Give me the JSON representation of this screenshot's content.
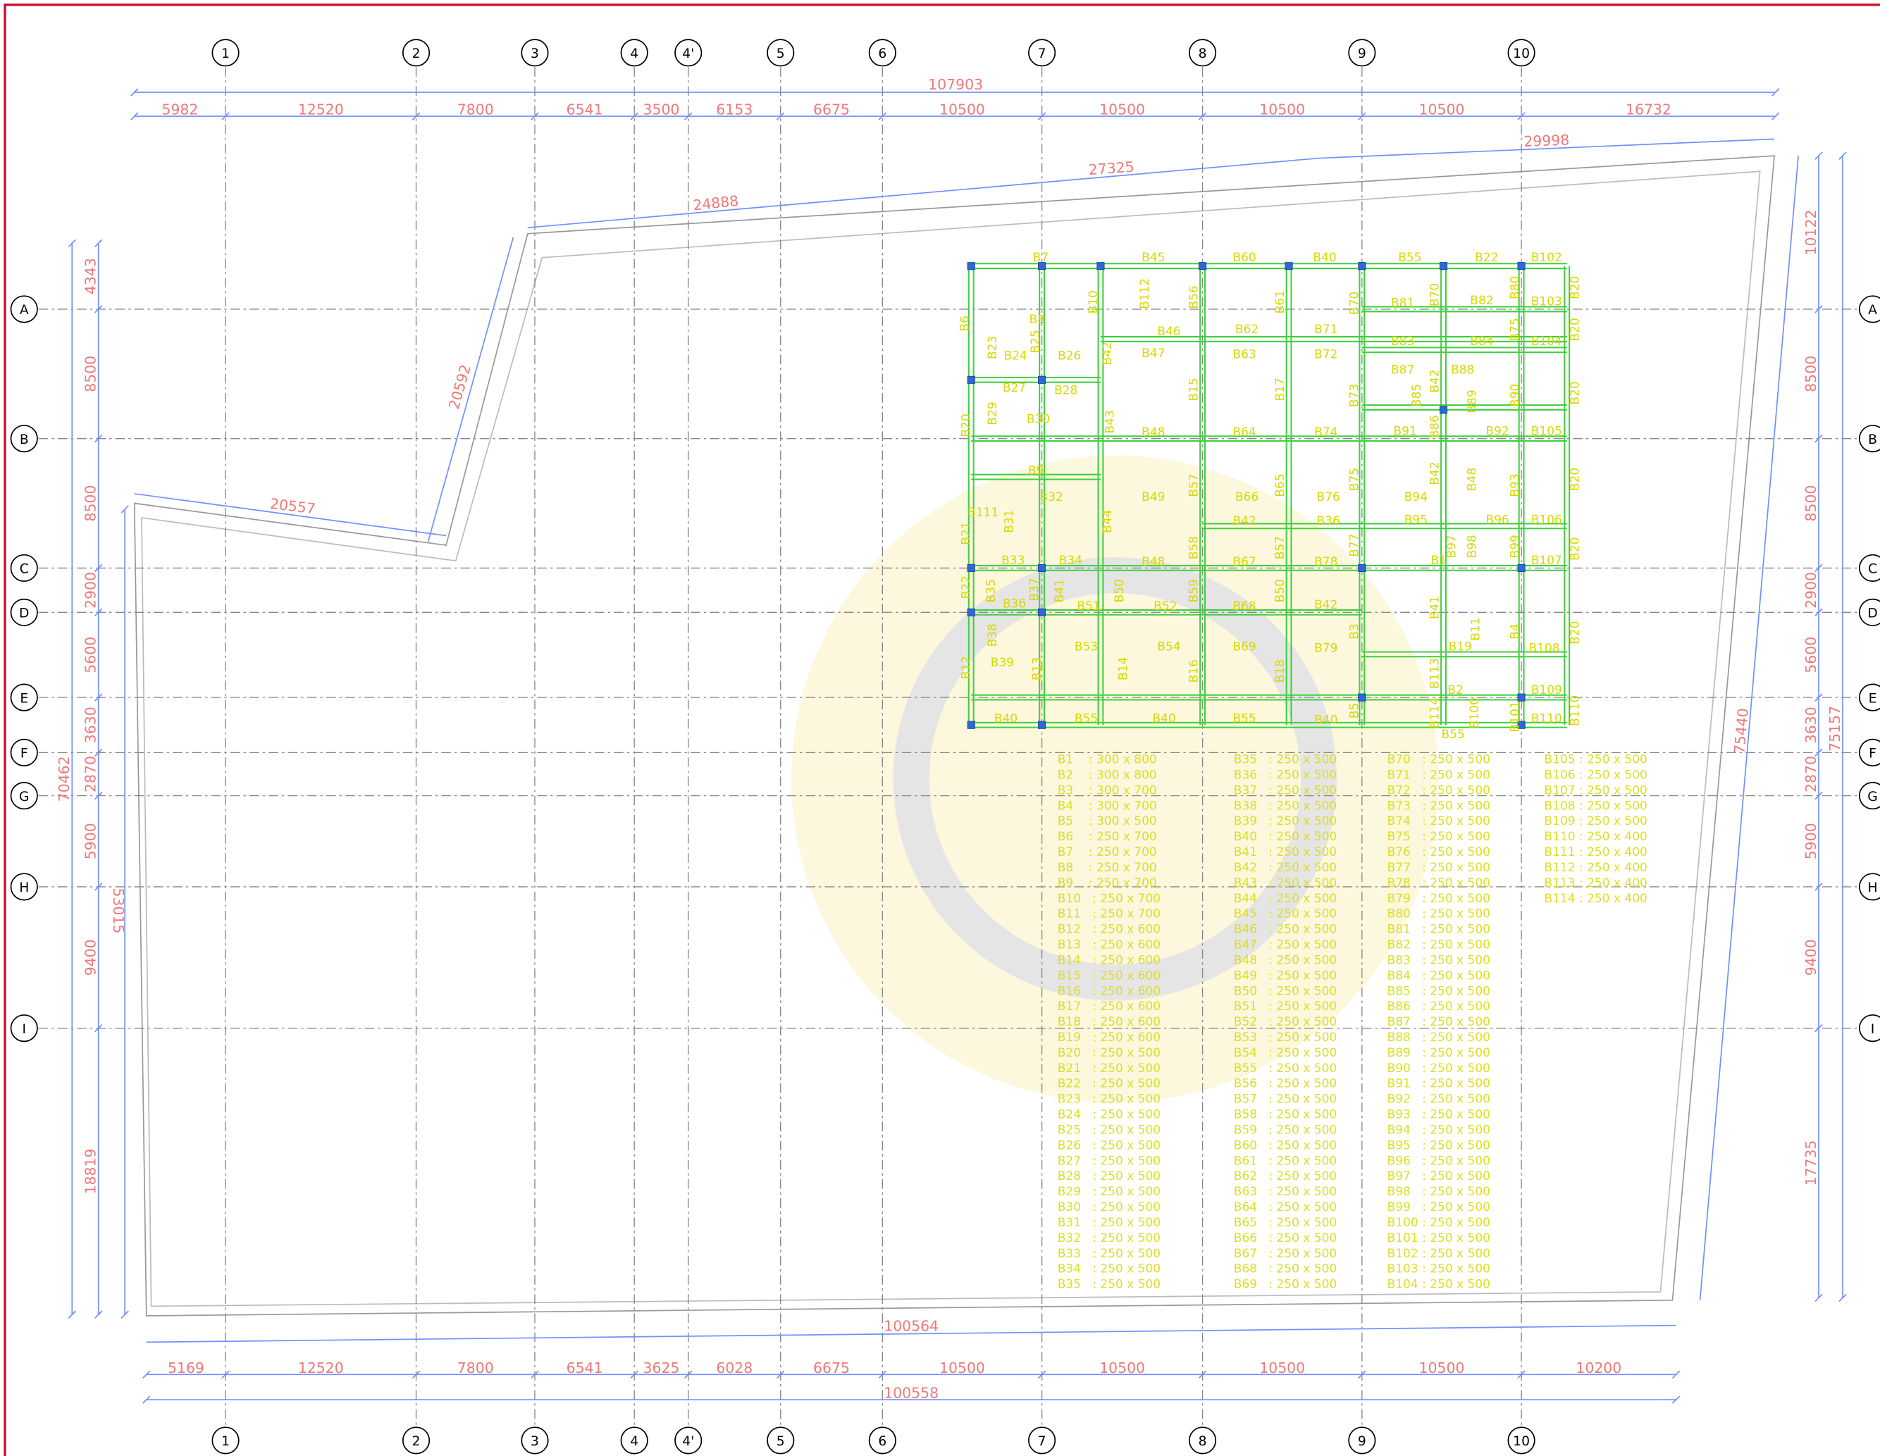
{
  "grid": {
    "columns": [
      "1",
      "2",
      "3",
      "4",
      "4'",
      "5",
      "6",
      "7",
      "8",
      "9",
      "10"
    ],
    "rows": [
      "A",
      "B",
      "C",
      "D",
      "E",
      "F",
      "G",
      "H",
      "I"
    ]
  },
  "dimensions": {
    "top_total": 107903,
    "top": [
      5982,
      12520,
      7800,
      6541,
      3500,
      6153,
      6675,
      10500,
      10500,
      10500,
      10500,
      16732
    ],
    "bottom": [
      5169,
      12520,
      7800,
      6541,
      3625,
      6028,
      6675,
      10500,
      10500,
      10500,
      10500,
      10200
    ],
    "bottom_total": 100558,
    "bottom_overall": 100564,
    "left": [
      4343,
      8500,
      8500,
      2900,
      5600,
      3630,
      2870,
      5900,
      9400,
      18819
    ],
    "left_total": 70462,
    "left_partial": 53015,
    "right": [
      10122,
      8500,
      8500,
      2900,
      5600,
      3630,
      2870,
      5900,
      9400,
      17735
    ],
    "right_total": 75157,
    "right_slant": 75440,
    "slanted": [
      24888,
      27325,
      29998,
      20592,
      20557
    ]
  },
  "beam_labels_horizontal": [
    "B7",
    "B45",
    "B60",
    "B40",
    "B55",
    "B22",
    "B102",
    "B8",
    "B46",
    "B62",
    "B71",
    "B81",
    "B82",
    "B103",
    "B24",
    "B26",
    "B47",
    "B63",
    "B72",
    "B83",
    "B84",
    "B104",
    "B27",
    "B28",
    "B87",
    "B88",
    "B30",
    "B48",
    "B64",
    "B74",
    "B91",
    "B92",
    "B105",
    "B9",
    "B32",
    "B49",
    "B66",
    "B76",
    "B94",
    "B111",
    "B42",
    "B36",
    "B95",
    "B96",
    "B106",
    "B33",
    "B34",
    "B48",
    "B67",
    "B78",
    "B1",
    "B107",
    "B36",
    "B51",
    "B52",
    "B68",
    "B42",
    "B53",
    "B54",
    "B69",
    "B79",
    "B19",
    "B108",
    "B39",
    "B2",
    "B109",
    "B40",
    "B55",
    "B40",
    "B55",
    "B40",
    "B55",
    "B110"
  ],
  "beam_labels_vertical": [
    "B6",
    "B23",
    "B25",
    "B10",
    "B112",
    "B56",
    "B61",
    "B70",
    "B70",
    "B80",
    "B20",
    "B75",
    "B20",
    "B42",
    "B15",
    "B17",
    "B73",
    "B85",
    "B42",
    "B89",
    "B90",
    "B20",
    "B86",
    "B20",
    "B29",
    "B43",
    "B57",
    "B65",
    "B75",
    "B42",
    "B48",
    "B93",
    "B20",
    "B21",
    "B31",
    "B44",
    "B58",
    "B57",
    "B77",
    "B97",
    "B98",
    "B99",
    "B20",
    "B22",
    "B35",
    "B37",
    "B41",
    "B50",
    "B59",
    "B50",
    "B3",
    "B41",
    "B11",
    "B4",
    "B20",
    "B38",
    "B12",
    "B13",
    "B14",
    "B16",
    "B18",
    "B5",
    "B113",
    "B114",
    "B100",
    "B101",
    "B110"
  ],
  "beam_schedule": [
    [
      "B1    : 300 x 800",
      "B2    : 300 x 800",
      "B3    : 300 x 700",
      "B4    : 300 x 700",
      "B5    : 300 x 500",
      "B6    : 250 x 700",
      "B7    : 250 x 700",
      "B8    : 250 x 700",
      "B9    : 250 x 700",
      "B10   : 250 x 700",
      "B11   : 250 x 700",
      "B12   : 250 x 600",
      "B13   : 250 x 600",
      "B14   : 250 x 600",
      "B15   : 250 x 600",
      "B16   : 250 x 600",
      "B17   : 250 x 600",
      "B18   : 250 x 600",
      "B19   : 250 x 600",
      "B20   : 250 x 500",
      "B21   : 250 x 500",
      "B22   : 250 x 500",
      "B23   : 250 x 500",
      "B24   : 250 x 500",
      "B25   : 250 x 500",
      "B26   : 250 x 500",
      "B27   : 250 x 500",
      "B28   : 250 x 500",
      "B29   : 250 x 500",
      "B30   : 250 x 500",
      "B31   : 250 x 500",
      "B32   : 250 x 500",
      "B33   : 250 x 500",
      "B34   : 250 x 500",
      "B35   : 250 x 500"
    ],
    [
      "B35   : 250 x 500",
      "B36   : 250 x 500",
      "B37   : 250 x 500",
      "B38   : 250 x 500",
      "B39   : 250 x 500",
      "B40   : 250 x 500",
      "B41   : 250 x 500",
      "B42   : 250 x 500",
      "B43   : 250 x 500",
      "B44   : 250 x 500",
      "B45   : 250 x 500",
      "B46   : 250 x 500",
      "B47   : 250 x 500",
      "B48   : 250 x 500",
      "B49   : 250 x 500",
      "B50   : 250 x 500",
      "B51   : 250 x 500",
      "B52   : 250 x 500",
      "B53   : 250 x 500",
      "B54   : 250 x 500",
      "B55   : 250 x 500",
      "B56   : 250 x 500",
      "B57   : 250 x 500",
      "B58   : 250 x 500",
      "B59   : 250 x 500",
      "B60   : 250 x 500",
      "B61   : 250 x 500",
      "B62   : 250 x 500",
      "B63   : 250 x 500",
      "B64   : 250 x 500",
      "B65   : 250 x 500",
      "B66   : 250 x 500",
      "B67   : 250 x 500",
      "B68   : 250 x 500",
      "B69   : 250 x 500"
    ],
    [
      "B70   : 250 x 500",
      "B71   : 250 x 500",
      "B72   : 250 x 500",
      "B73   : 250 x 500",
      "B74   : 250 x 500",
      "B75   : 250 x 500",
      "B76   : 250 x 500",
      "B77   : 250 x 500",
      "B78   : 250 x 500",
      "B79   : 250 x 500",
      "B80   : 250 x 500",
      "B81   : 250 x 500",
      "B82   : 250 x 500",
      "B83   : 250 x 500",
      "B84   : 250 x 500",
      "B85   : 250 x 500",
      "B86   : 250 x 500",
      "B87   : 250 x 500",
      "B88   : 250 x 500",
      "B89   : 250 x 500",
      "B90   : 250 x 500",
      "B91   : 250 x 500",
      "B92   : 250 x 500",
      "B93   : 250 x 500",
      "B94   : 250 x 500",
      "B95   : 250 x 500",
      "B96   : 250 x 500",
      "B97   : 250 x 500",
      "B98   : 250 x 500",
      "B99   : 250 x 500",
      "B100 : 250 x 500",
      "B101 : 250 x 500",
      "B102 : 250 x 500",
      "B103 : 250 x 500",
      "B104 : 250 x 500"
    ],
    [
      "B105 : 250 x 500",
      "B106 : 250 x 500",
      "B107 : 250 x 500",
      "B108 : 250 x 500",
      "B109 : 250 x 500",
      "B110 : 250 x 400",
      "B111 : 250 x 400",
      "B112 : 250 x 400",
      "B113 : 250 x 400",
      "B114 : 250 x 400"
    ]
  ]
}
